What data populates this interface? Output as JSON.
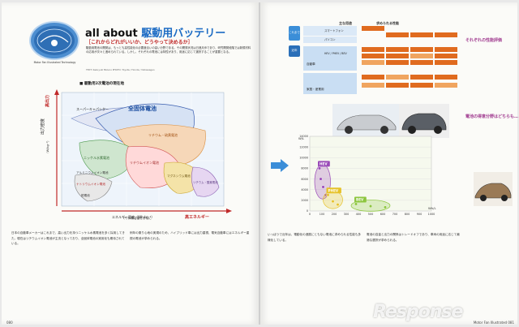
{
  "title": {
    "prefix": "all about ",
    "accent": "駆動用バッテリー"
  },
  "subtitle": "［これからどれがいいか、どうやって決めるか］",
  "lead": "駆動用電池の開発は、もっとも高性能化の必要度合いの高い分野である。その開発状況は日進月歩であり、研究開発段階では新規材料の応用が次々と進められている。しかし、それぞれの電池には特性があり、用途に応じて選択することが重要となる。",
  "credit": "TEXT: Kazuyuki Mizuno  PHOTO: Toyota / Honda / Volkswagen",
  "badge_caption": "Motor Fan Illustrated Technology",
  "figure": {
    "title": "■ 駆動用2次電池の現在地",
    "note": "（*) 体積容量をおもに",
    "y_label": "出力密度",
    "y_unit": "（W/kg⁻¹）",
    "x_label": "エネルギー密度（Wh·kg⁻¹）",
    "hi_out": "高出力",
    "hi_cap": "高エネルギー",
    "regions": [
      "スーパーキャパシター",
      "全固体電池",
      "リチウム・硫黄電池",
      "ニッケル水素電池",
      "リチウムイオン電池",
      "アルミニウムイオン電池",
      "ナトリウムイオン電池",
      "マグネシウム電池",
      "リチウム・酸素電池",
      "鉛電池"
    ]
  },
  "chart_data": {
    "type": "scatter",
    "title": "",
    "xlabel": "Wh/L",
    "ylabel": "W/L",
    "xlim": [
      0,
      1000
    ],
    "ylim": [
      0,
      14000
    ],
    "x_ticks": [
      "0",
      "100",
      "200",
      "300",
      "400",
      "500",
      "600",
      "700",
      "800",
      "900",
      "1000"
    ],
    "y_ticks": [
      "0",
      "2000",
      "4000",
      "6000",
      "8000",
      "10000",
      "12000",
      "14000"
    ],
    "series": [
      {
        "name": "HEV",
        "color": "#9a4bb8",
        "points": [
          [
            80,
            8000
          ],
          [
            90,
            6000
          ],
          [
            110,
            4500
          ],
          [
            130,
            3000
          ]
        ]
      },
      {
        "name": "PHEV",
        "color": "#e6c229",
        "points": [
          [
            150,
            3000
          ],
          [
            190,
            1800
          ],
          [
            230,
            1200
          ]
        ]
      },
      {
        "name": "BEV",
        "color": "#8dc63f",
        "points": [
          [
            380,
            1300
          ],
          [
            500,
            900
          ],
          [
            620,
            700
          ]
        ]
      }
    ]
  },
  "uses": {
    "rows": [
      {
        "label": "スマートフォン",
        "sub": ""
      },
      {
        "label": "パソコン",
        "sub": ""
      },
      {
        "label": "自動車",
        "sub": "HEV / PHEV / BEV"
      },
      {
        "label": "家庭・産業用",
        "sub": ""
      }
    ],
    "header1": "主な用途",
    "header2": "求められる性能",
    "side_tag": "これまで",
    "side_tag2": "近年"
  },
  "section_heads": [
    "それぞれの性能評価",
    "電池の得意分野はどちらも…"
  ],
  "body_left_1": "日本の自動車メーカーはこれまで、高い出力を持つニッケル水素電池を多く採用してきた。現在はリチウムイオン電池が主流となっており、全固体電池の実用化も期待されている。",
  "body_left_2": "例年の乗り心地の実現のため、ハイブリッド車には出力重視、電気自動車にはエネルギー重視の電池が求められる。",
  "body_right_1": "いっぽうで近年は、電動化の進展にともない電池に求められる性能も多様化している。",
  "body_right_2": "電池の容量と出力の関係はトレードオフであり、車両の用途に応じて最適な選択が求められる。",
  "folio_left": "080",
  "folio_right": "Motor Fan Illustrated 081",
  "watermark": "Response"
}
